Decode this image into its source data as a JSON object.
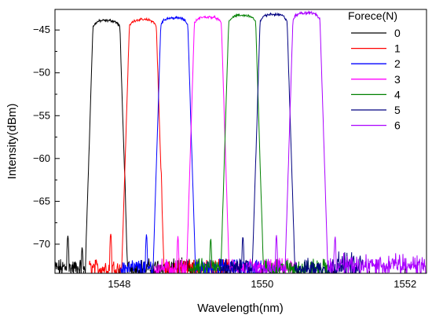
{
  "chart_data": {
    "type": "line",
    "title": "",
    "xlabel": "Wavelength(nm)",
    "ylabel": "Intensity(dBm)",
    "xlim": [
      1547.1,
      1552.3
    ],
    "ylim": [
      -73.4,
      -42.6
    ],
    "x_ticks": [
      1548,
      1550,
      1552
    ],
    "y_ticks": [
      -45,
      -50,
      -55,
      -60,
      -65,
      -70
    ],
    "grid": false,
    "legend": {
      "title": "Forece(N)",
      "position": "top-right"
    },
    "noise_floor_dBm": -72.8,
    "series": [
      {
        "name": "0",
        "color": "#000000",
        "center_nm": 1547.82,
        "peak_dBm": -43.9,
        "side_peaks": [
          {
            "x": 1548.07,
            "y": -61.3
          },
          {
            "x": 1547.28,
            "y": -68.9
          },
          {
            "x": 1547.48,
            "y": -70.4
          }
        ]
      },
      {
        "name": "1",
        "color": "#ff0000",
        "center_nm": 1548.33,
        "peak_dBm": -43.8,
        "side_peaks": [
          {
            "x": 1548.58,
            "y": -61.0
          },
          {
            "x": 1547.88,
            "y": -68.7
          },
          {
            "x": 1548.05,
            "y": -70.0
          }
        ]
      },
      {
        "name": "2",
        "color": "#0000ff",
        "center_nm": 1548.77,
        "peak_dBm": -43.6,
        "side_peaks": [
          {
            "x": 1549.01,
            "y": -61.1
          },
          {
            "x": 1548.38,
            "y": -69.0
          },
          {
            "x": 1548.55,
            "y": -70.6
          }
        ]
      },
      {
        "name": "3",
        "color": "#ff00ff",
        "center_nm": 1549.24,
        "peak_dBm": -43.5,
        "side_peaks": [
          {
            "x": 1549.47,
            "y": -61.1
          },
          {
            "x": 1548.82,
            "y": -69.2
          },
          {
            "x": 1549.0,
            "y": -70.5
          }
        ]
      },
      {
        "name": "4",
        "color": "#008000",
        "center_nm": 1549.72,
        "peak_dBm": -43.3,
        "side_peaks": [
          {
            "x": 1549.96,
            "y": -60.9
          },
          {
            "x": 1549.28,
            "y": -69.4
          },
          {
            "x": 1549.47,
            "y": -70.8
          }
        ]
      },
      {
        "name": "5",
        "color": "#000080",
        "center_nm": 1550.16,
        "peak_dBm": -43.2,
        "side_peaks": [
          {
            "x": 1550.39,
            "y": -60.6
          },
          {
            "x": 1549.73,
            "y": -69.0
          },
          {
            "x": 1549.93,
            "y": -70.6
          }
        ]
      },
      {
        "name": "6",
        "color": "#aa00ff",
        "center_nm": 1550.62,
        "peak_dBm": -43.0,
        "side_peaks": [
          {
            "x": 1550.84,
            "y": -60.4
          },
          {
            "x": 1550.2,
            "y": -69.1
          },
          {
            "x": 1550.38,
            "y": -70.9
          },
          {
            "x": 1551.02,
            "y": -69.2
          }
        ]
      }
    ]
  }
}
